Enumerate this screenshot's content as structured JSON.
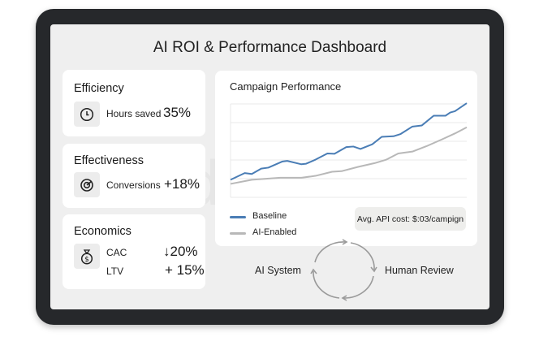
{
  "title": "AI ROI & Performance Dashboard",
  "watermark": "sdlc corp",
  "cards": [
    {
      "heading": "Efficiency",
      "icon": "clock-icon",
      "label": "Hours saved",
      "value": "35%"
    },
    {
      "heading": "Effectiveness",
      "icon": "target-icon",
      "label": "Conversions",
      "value": "+18%"
    },
    {
      "heading": "Economics",
      "icon": "money-bag-icon",
      "rows": [
        {
          "label": "CAC",
          "value": "↓20%"
        },
        {
          "label": "LTV",
          "value": "+ 15%"
        }
      ]
    }
  ],
  "chart_panel": {
    "title": "Campaign Performance",
    "note": "Avg. API cost: $:03/campign"
  },
  "chart_data": {
    "type": "line",
    "title": "Campaign Performance",
    "xlim": [
      0,
      100
    ],
    "ylim": [
      0,
      5
    ],
    "grid": true,
    "legend": "bottom-left",
    "series": [
      {
        "name": "Baseline",
        "color": "#4a7db5",
        "x": [
          0,
          6,
          9,
          13,
          16,
          22,
          24,
          30,
          32,
          36,
          41,
          44,
          49,
          52,
          55,
          60,
          64,
          69,
          72,
          77,
          81,
          86,
          91,
          93,
          95,
          100
        ],
        "y": [
          0.94,
          1.3,
          1.25,
          1.54,
          1.59,
          1.92,
          1.95,
          1.77,
          1.8,
          2.02,
          2.35,
          2.33,
          2.69,
          2.72,
          2.59,
          2.84,
          3.24,
          3.27,
          3.39,
          3.79,
          3.85,
          4.37,
          4.37,
          4.54,
          4.61,
          5.04
        ]
      },
      {
        "name": "AI-Enabled",
        "color": "#b8b8b8",
        "x": [
          0,
          9,
          21,
          30,
          36,
          43,
          47,
          54,
          61,
          66,
          71,
          77,
          83,
          90,
          95,
          100
        ],
        "y": [
          0.72,
          0.94,
          1.05,
          1.05,
          1.15,
          1.37,
          1.4,
          1.63,
          1.83,
          2.02,
          2.35,
          2.45,
          2.74,
          3.13,
          3.42,
          3.75
        ]
      }
    ]
  },
  "cycle": {
    "left": "AI System",
    "right": "Human Review"
  }
}
